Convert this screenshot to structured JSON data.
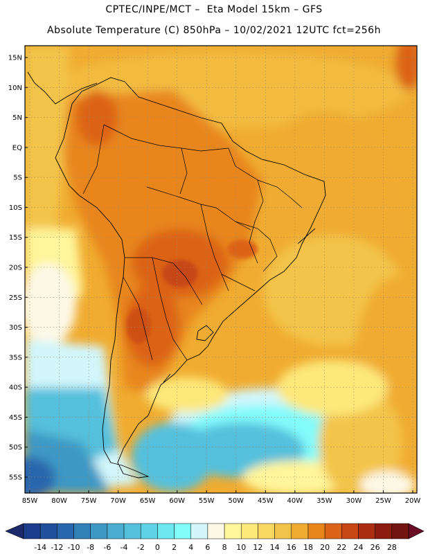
{
  "header": {
    "line1": "CPTEC/INPE/MCT –  Eta Model 15km – GFS",
    "line2": "Absolute Temperature (C) 850hPa – 10/02/2021 12UTC fct=256h"
  },
  "map": {
    "lat_labels": [
      "15N",
      "10N",
      "5N",
      "EQ",
      "5S",
      "10S",
      "15S",
      "20S",
      "25S",
      "30S",
      "35S",
      "40S",
      "45S",
      "50S",
      "55S"
    ],
    "lat_values": [
      15,
      10,
      5,
      0,
      -5,
      -10,
      -15,
      -20,
      -25,
      -30,
      -35,
      -40,
      -45,
      -50,
      -55
    ],
    "lon_labels": [
      "85W",
      "80W",
      "75W",
      "70W",
      "65W",
      "60W",
      "55W",
      "50W",
      "45W",
      "40W",
      "35W",
      "30W",
      "25W",
      "20W"
    ],
    "lon_values": [
      -85,
      -80,
      -75,
      -70,
      -65,
      -60,
      -55,
      -50,
      -45,
      -40,
      -35,
      -30,
      -25,
      -20
    ]
  },
  "colorbar": {
    "labels": [
      "-14",
      "-12",
      "-10",
      "-8",
      "-6",
      "-4",
      "-2",
      "0",
      "2",
      "4",
      "6",
      "8",
      "10",
      "12",
      "14",
      "16",
      "18",
      "20",
      "22",
      "24",
      "26",
      "28"
    ],
    "colors": [
      "#1c3c8c",
      "#22519c",
      "#2a66ac",
      "#3380b8",
      "#3e98c4",
      "#49acd0",
      "#54c0dc",
      "#5fd4e6",
      "#6ee8f0",
      "#82fbfb",
      "#d2f6fb",
      "#fdf8e6",
      "#fff59a",
      "#fde87a",
      "#f9d862",
      "#f3c44a",
      "#f0ac30",
      "#e8861c",
      "#dc6418",
      "#c84614",
      "#ac2e12",
      "#8c1c10",
      "#741410"
    ],
    "left_arrow_color": "#1c2a6c",
    "right_arrow_color": "#6a0c24"
  }
}
